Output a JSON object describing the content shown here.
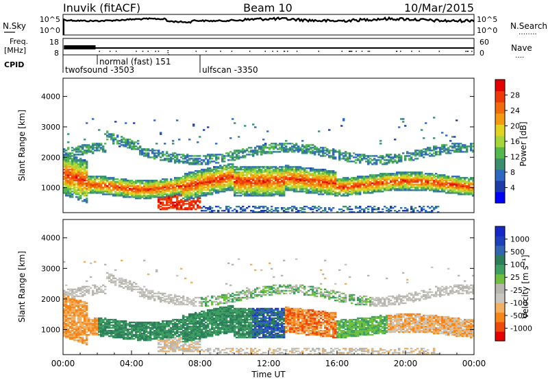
{
  "header": {
    "title": "Inuvik (fitACF)",
    "beam": "Beam 10",
    "date": "10/Mar/2015"
  },
  "noise_panel": {
    "left_label": "N.Sky",
    "right_label": "N.Search",
    "right_dots": "․․․․․․․․",
    "left_ticks": [
      "10^5",
      "10^0"
    ],
    "right_ticks": [
      "10^5",
      "10^0"
    ]
  },
  "freq_panel": {
    "left_label_top": "Freq.",
    "left_label_bottom": "[MHz]",
    "right_label": "Nave",
    "right_dots": "․․․․",
    "left_ticks": [
      "18",
      "8"
    ],
    "right_ticks": [
      "60",
      "0"
    ]
  },
  "cpid": {
    "label": "CPID",
    "modes": [
      {
        "name": "twofsound -3503",
        "start_hour": 0.0
      },
      {
        "name": "normal (fast) 151",
        "start_hour": 1.9
      },
      {
        "name": "ulfscan -3350",
        "start_hour": 8.0
      }
    ]
  },
  "chart_data": [
    {
      "type": "heatmap",
      "name": "power",
      "ylabel": "Slant Range [km]",
      "ylim": [
        180,
        4600
      ],
      "xlim_hours": [
        0,
        24
      ],
      "yticks": [
        "1000",
        "2000",
        "3000",
        "4000"
      ],
      "colorbar": {
        "label": "Power [dB]",
        "ticks": [
          "28",
          "24",
          "20",
          "16",
          "12",
          "8",
          "4"
        ],
        "range": [
          0,
          32
        ],
        "colors": [
          "#0000ff",
          "#1e3ca8",
          "#2f68c0",
          "#3b8f6e",
          "#53b84d",
          "#a7d63b",
          "#e2d320",
          "#f39a12",
          "#f26b0a",
          "#ee3a06",
          "#e40000"
        ]
      }
    },
    {
      "type": "heatmap",
      "name": "velocity",
      "ylabel": "Slant Range [km]",
      "ylim": [
        180,
        4600
      ],
      "xlim_hours": [
        0,
        24
      ],
      "xticks": [
        "00:00",
        "04:00",
        "08:00",
        "12:00",
        "16:00",
        "20:00",
        "00:00"
      ],
      "xlabel": "Time UT",
      "yticks": [
        "1000",
        "2000",
        "3000",
        "4000"
      ],
      "colorbar": {
        "label": "Velocity [m s⁻¹]",
        "ticks": [
          "1000",
          "500",
          "100",
          "25",
          "-25",
          "-100",
          "-500",
          "-1000"
        ],
        "colors": [
          "#e60000",
          "#f04a0a",
          "#f7861a",
          "#f1b063",
          "#c8c6c0",
          "#b7b7b0",
          "#6fc040",
          "#3f9f62",
          "#2d7f5c",
          "#3266b3",
          "#1f3fbd",
          "#1828c8"
        ]
      }
    }
  ]
}
